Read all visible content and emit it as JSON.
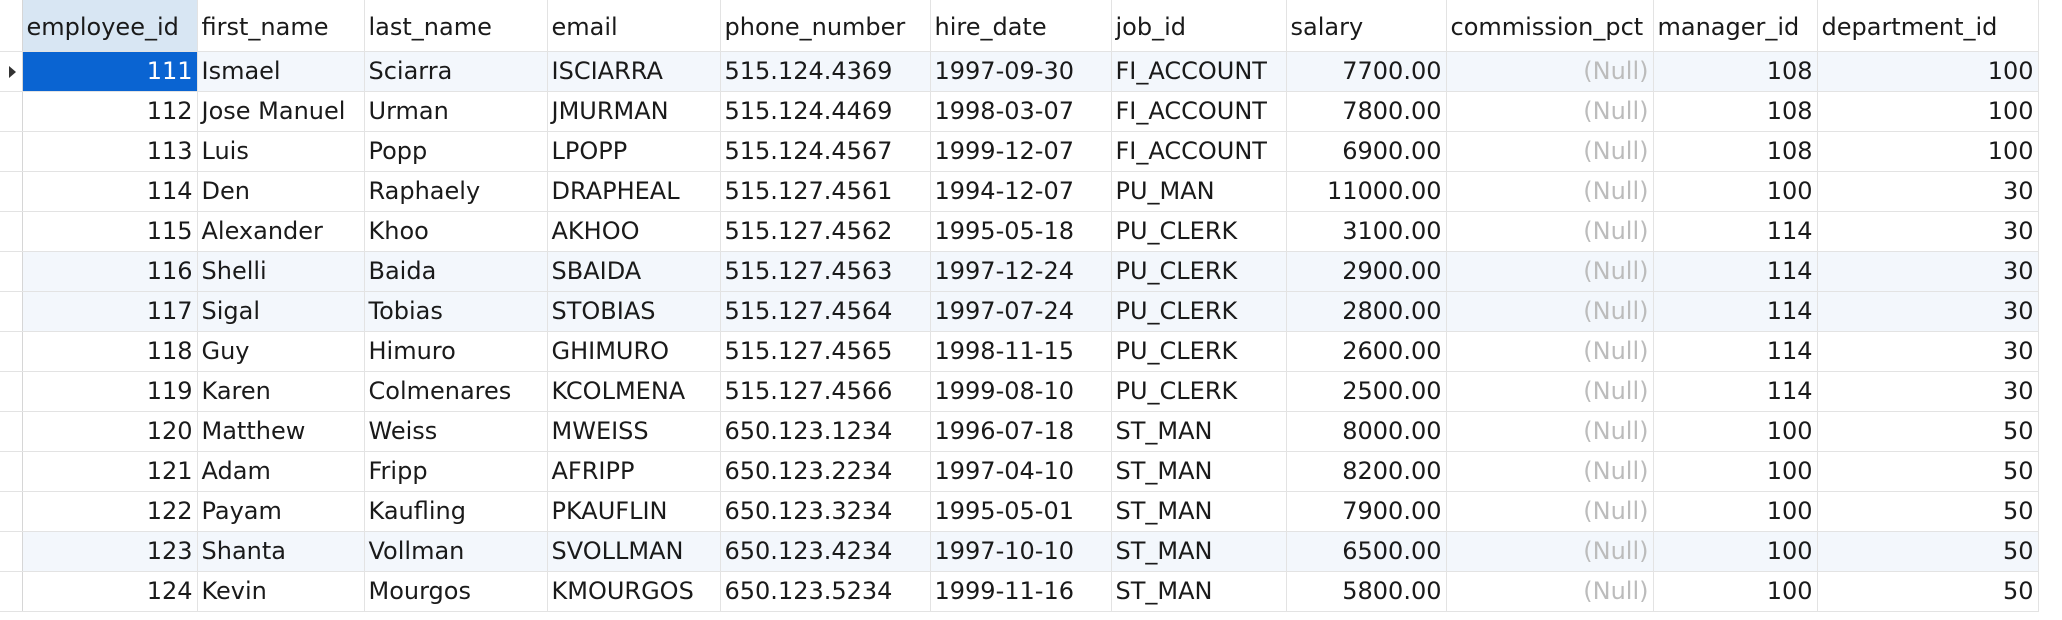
{
  "columns": [
    "employee_id",
    "first_name",
    "last_name",
    "email",
    "phone_number",
    "hire_date",
    "job_id",
    "salary",
    "commission_pct",
    "manager_id",
    "department_id"
  ],
  "null_label": "(Null)",
  "selected_cell": {
    "row": 0,
    "column": "employee_id"
  },
  "colors": {
    "selection": "#0a64d2",
    "selected_header": "#d8e6f3",
    "alternate_row": "#f3f7fc",
    "null_text": "#bcbcbc"
  },
  "rows": [
    [
      "111",
      "Ismael",
      "Sciarra",
      "ISCIARRA",
      "515.124.4369",
      "1997-09-30",
      "FI_ACCOUNT",
      "7700.00",
      "(Null)",
      "108",
      "100"
    ],
    [
      "112",
      "Jose Manuel",
      "Urman",
      "JMURMAN",
      "515.124.4469",
      "1998-03-07",
      "FI_ACCOUNT",
      "7800.00",
      "(Null)",
      "108",
      "100"
    ],
    [
      "113",
      "Luis",
      "Popp",
      "LPOPP",
      "515.124.4567",
      "1999-12-07",
      "FI_ACCOUNT",
      "6900.00",
      "(Null)",
      "108",
      "100"
    ],
    [
      "114",
      "Den",
      "Raphaely",
      "DRAPHEAL",
      "515.127.4561",
      "1994-12-07",
      "PU_MAN",
      "11000.00",
      "(Null)",
      "100",
      "30"
    ],
    [
      "115",
      "Alexander",
      "Khoo",
      "AKHOO",
      "515.127.4562",
      "1995-05-18",
      "PU_CLERK",
      "3100.00",
      "(Null)",
      "114",
      "30"
    ],
    [
      "116",
      "Shelli",
      "Baida",
      "SBAIDA",
      "515.127.4563",
      "1997-12-24",
      "PU_CLERK",
      "2900.00",
      "(Null)",
      "114",
      "30"
    ],
    [
      "117",
      "Sigal",
      "Tobias",
      "STOBIAS",
      "515.127.4564",
      "1997-07-24",
      "PU_CLERK",
      "2800.00",
      "(Null)",
      "114",
      "30"
    ],
    [
      "118",
      "Guy",
      "Himuro",
      "GHIMURO",
      "515.127.4565",
      "1998-11-15",
      "PU_CLERK",
      "2600.00",
      "(Null)",
      "114",
      "30"
    ],
    [
      "119",
      "Karen",
      "Colmenares",
      "KCOLMENA",
      "515.127.4566",
      "1999-08-10",
      "PU_CLERK",
      "2500.00",
      "(Null)",
      "114",
      "30"
    ],
    [
      "120",
      "Matthew",
      "Weiss",
      "MWEISS",
      "650.123.1234",
      "1996-07-18",
      "ST_MAN",
      "8000.00",
      "(Null)",
      "100",
      "50"
    ],
    [
      "121",
      "Adam",
      "Fripp",
      "AFRIPP",
      "650.123.2234",
      "1997-04-10",
      "ST_MAN",
      "8200.00",
      "(Null)",
      "100",
      "50"
    ],
    [
      "122",
      "Payam",
      "Kaufling",
      "PKAUFLIN",
      "650.123.3234",
      "1995-05-01",
      "ST_MAN",
      "7900.00",
      "(Null)",
      "100",
      "50"
    ],
    [
      "123",
      "Shanta",
      "Vollman",
      "SVOLLMAN",
      "650.123.4234",
      "1997-10-10",
      "ST_MAN",
      "6500.00",
      "(Null)",
      "100",
      "50"
    ],
    [
      "124",
      "Kevin",
      "Mourgos",
      "KMOURGOS",
      "650.123.5234",
      "1999-11-16",
      "ST_MAN",
      "5800.00",
      "(Null)",
      "100",
      "50"
    ]
  ]
}
